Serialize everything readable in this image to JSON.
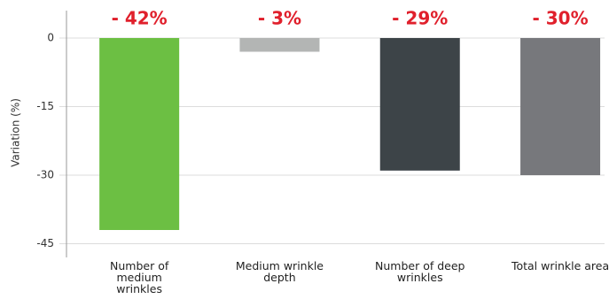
{
  "chart_data": {
    "type": "bar",
    "y_label": "Variation (%)",
    "categories": [
      "Number of medium wrinkles",
      "Medium wrinkle depth",
      "Number of deep wrinkles",
      "Total wrinkle area"
    ],
    "values": [
      -42,
      -3,
      -29,
      -30
    ],
    "value_labels": [
      "- 42%",
      "- 3%",
      "- 29%",
      "- 30%"
    ],
    "colors": [
      "#6cbf43",
      "#b3b5b4",
      "#3d4448",
      "#77787c"
    ],
    "ylim": [
      -48,
      6
    ],
    "yticks": [
      0,
      -15,
      -30,
      -45
    ],
    "grid": true
  }
}
